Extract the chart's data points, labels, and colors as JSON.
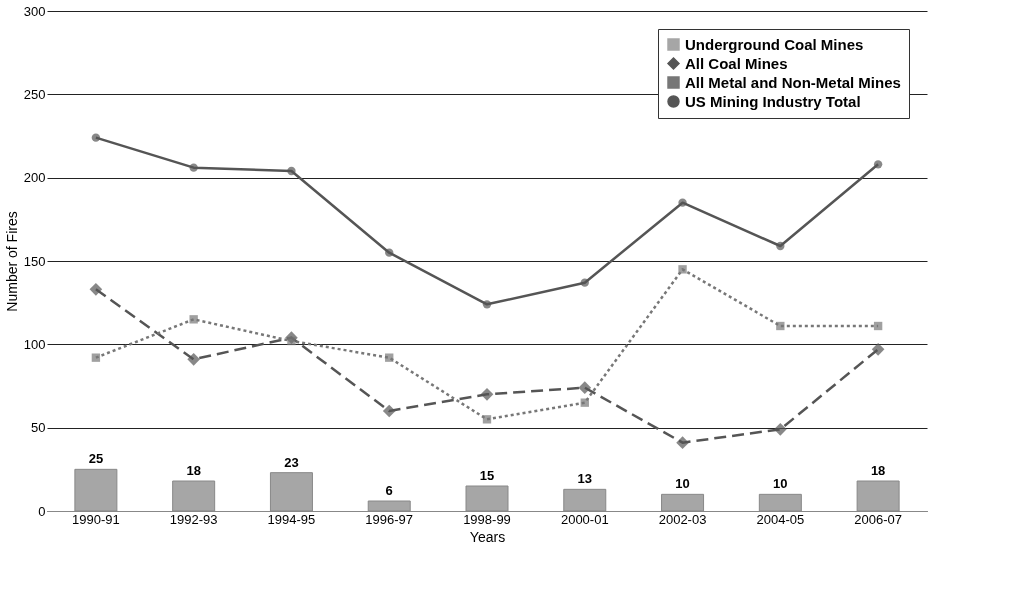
{
  "chart_data": {
    "type": "line",
    "xlabel": "Years",
    "ylabel": "Number of Fires",
    "categories": [
      "1990-91",
      "1992-93",
      "1994-95",
      "1996-97",
      "1998-99",
      "2000-01",
      "2002-03",
      "2004-05",
      "2006-07"
    ],
    "series": [
      {
        "name": "Underground Coal Mines",
        "type": "bar",
        "color": "#a6a6a6",
        "values": [
          25,
          18,
          23,
          6,
          15,
          13,
          10,
          10,
          18
        ],
        "data_labels": true
      },
      {
        "name": "All Coal Mines",
        "color": "#555555",
        "marker": "diamond",
        "line_style": "dashed",
        "values": [
          133,
          91,
          104,
          60,
          70,
          74,
          41,
          49,
          97
        ]
      },
      {
        "name": "All Metal and Non-Metal Mines",
        "color": "#777777",
        "marker": "square",
        "line_style": "dotted",
        "values": [
          92,
          115,
          102,
          92,
          55,
          65,
          145,
          111,
          111
        ]
      },
      {
        "name": "US Mining Industry Total",
        "color": "#555555",
        "marker": "circle",
        "line_style": "solid",
        "values": [
          224,
          206,
          204,
          155,
          124,
          137,
          185,
          159,
          208
        ]
      }
    ],
    "ylim": [
      0,
      300
    ],
    "yticks": [
      0,
      50,
      100,
      150,
      200,
      250,
      300
    ],
    "grid": "y",
    "legend": "top right"
  }
}
